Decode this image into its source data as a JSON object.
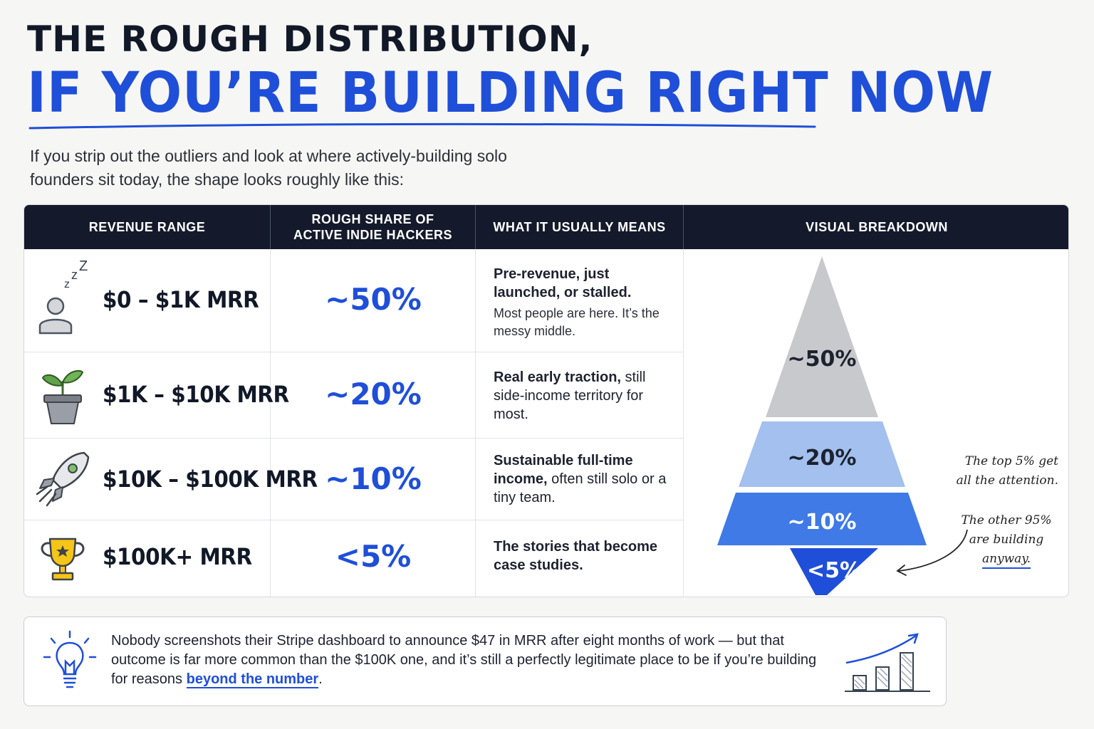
{
  "header": {
    "title_line1": "THE ROUGH DISTRIBUTION,",
    "title_line2": "IF YOU’RE BUILDING RIGHT NOW",
    "intro": "If you strip out the outliers and look at where actively-building solo founders sit today, the shape looks roughly like this:"
  },
  "table": {
    "columns": [
      "REVENUE RANGE",
      "ROUGH SHARE OF ACTIVE INDIE HACKERS",
      "WHAT IT USUALLY MEANS",
      "VISUAL BREAKDOWN"
    ],
    "rows": [
      {
        "icon": "sleeping-person-icon",
        "range": "$0 – $1K MRR",
        "share": "~50%",
        "meaning_bold": "Pre-revenue, just launched, or stalled.",
        "meaning_rest": "",
        "meaning_sub": "Most people are here. It’s the messy middle."
      },
      {
        "icon": "potted-plant-icon",
        "range": "$1K – $10K MRR",
        "share": "~20%",
        "meaning_bold": "Real early traction,",
        "meaning_rest": " still side-income territory for most.",
        "meaning_sub": ""
      },
      {
        "icon": "rocket-icon",
        "range": "$10K – $100K MRR",
        "share": "~10%",
        "meaning_bold": "Sustainable full-time income,",
        "meaning_rest": " often still solo or a tiny team.",
        "meaning_sub": ""
      },
      {
        "icon": "trophy-icon",
        "range": "$100K+ MRR",
        "share": "<5%",
        "meaning_bold": "The stories that become case studies.",
        "meaning_rest": "",
        "meaning_sub": ""
      }
    ]
  },
  "pyramid": {
    "tiers": [
      {
        "label": "~50%",
        "share": 50,
        "color": "#c8c9cc"
      },
      {
        "label": "~20%",
        "share": 20,
        "color": "#a3c0ee"
      },
      {
        "label": "~10%",
        "share": 10,
        "color": "#3f7ae6"
      },
      {
        "label": "<5%",
        "share": 5,
        "color": "#1f4fd8"
      }
    ],
    "callout_top": [
      "The top 5% get",
      "all the attention."
    ],
    "callout_bottom": [
      "The other 95%",
      "are building",
      "anyway."
    ]
  },
  "note": {
    "text_before": "Nobody screenshots their Stripe dashboard to announce $47 in MRR after eight months of work — but that outcome is far more common than the $100K one, and it’s still a perfectly legitimate place to be if you’re building for reasons ",
    "highlight": "beyond the number",
    "text_after": "."
  },
  "colors": {
    "accent": "#1f4fd8",
    "header_bg": "#141a2b",
    "text": "#111827"
  }
}
